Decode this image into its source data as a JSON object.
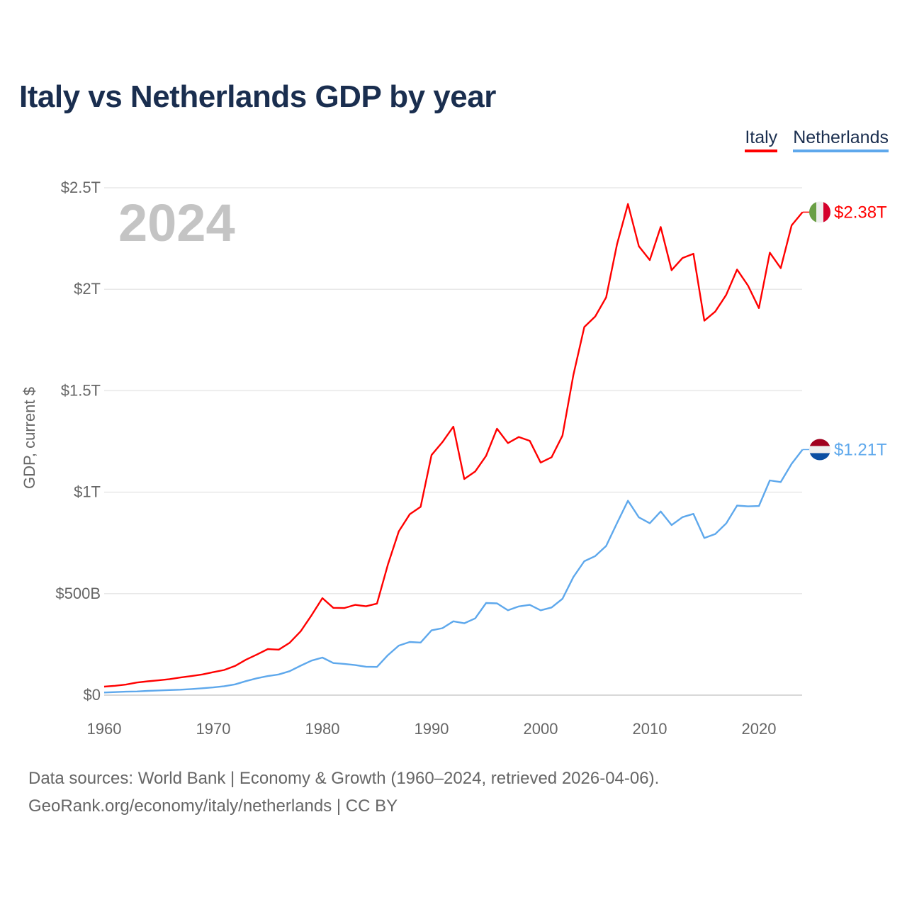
{
  "chart_data": {
    "type": "line",
    "title": "Italy vs Netherlands GDP by year",
    "ylabel": "GDP, current $",
    "xlabel": "",
    "year_label": "2024",
    "xlim": [
      1960,
      2024
    ],
    "ylim": [
      0,
      2.5
    ],
    "x_ticks": [
      1960,
      1970,
      1980,
      1990,
      2000,
      2010,
      2020
    ],
    "y_ticks": [
      {
        "v": 0,
        "label": "$0"
      },
      {
        "v": 0.5,
        "label": "$500B"
      },
      {
        "v": 1,
        "label": "$1T"
      },
      {
        "v": 1.5,
        "label": "$1.5T"
      },
      {
        "v": 2,
        "label": "$2T"
      },
      {
        "v": 2.5,
        "label": "$2.5T"
      }
    ],
    "grid": true,
    "legend_placement": "top-right",
    "x": [
      1960,
      1961,
      1962,
      1963,
      1964,
      1965,
      1966,
      1967,
      1968,
      1969,
      1970,
      1971,
      1972,
      1973,
      1974,
      1975,
      1976,
      1977,
      1978,
      1979,
      1980,
      1981,
      1982,
      1983,
      1984,
      1985,
      1986,
      1987,
      1988,
      1989,
      1990,
      1991,
      1992,
      1993,
      1994,
      1995,
      1996,
      1997,
      1998,
      1999,
      2000,
      2001,
      2002,
      2003,
      2004,
      2005,
      2006,
      2007,
      2008,
      2009,
      2010,
      2011,
      2012,
      2013,
      2014,
      2015,
      2016,
      2017,
      2018,
      2019,
      2020,
      2021,
      2022,
      2023,
      2024
    ],
    "series": [
      {
        "name": "Italy",
        "color": "#ff0000",
        "end_label": "$2.38T",
        "flag": "italy",
        "values": [
          0.042,
          0.046,
          0.052,
          0.062,
          0.068,
          0.073,
          0.079,
          0.087,
          0.094,
          0.102,
          0.113,
          0.124,
          0.144,
          0.175,
          0.2,
          0.227,
          0.224,
          0.258,
          0.314,
          0.393,
          0.478,
          0.43,
          0.429,
          0.445,
          0.438,
          0.451,
          0.643,
          0.807,
          0.891,
          0.928,
          1.183,
          1.247,
          1.323,
          1.065,
          1.102,
          1.179,
          1.313,
          1.242,
          1.272,
          1.253,
          1.146,
          1.172,
          1.279,
          1.578,
          1.814,
          1.866,
          1.96,
          2.222,
          2.42,
          2.212,
          2.144,
          2.307,
          2.094,
          2.154,
          2.175,
          1.845,
          1.89,
          1.972,
          2.097,
          2.018,
          1.907,
          2.18,
          2.104,
          2.315,
          2.38
        ]
      },
      {
        "name": "Netherlands",
        "color": "#5ea8ec",
        "end_label": "$1.21T",
        "flag": "netherlands",
        "values": [
          0.013,
          0.015,
          0.017,
          0.018,
          0.021,
          0.023,
          0.025,
          0.027,
          0.03,
          0.034,
          0.038,
          0.044,
          0.053,
          0.069,
          0.083,
          0.094,
          0.102,
          0.118,
          0.145,
          0.17,
          0.185,
          0.158,
          0.154,
          0.148,
          0.14,
          0.139,
          0.197,
          0.244,
          0.262,
          0.259,
          0.319,
          0.33,
          0.364,
          0.354,
          0.378,
          0.454,
          0.452,
          0.418,
          0.437,
          0.445,
          0.418,
          0.432,
          0.475,
          0.582,
          0.66,
          0.685,
          0.735,
          0.848,
          0.958,
          0.876,
          0.847,
          0.905,
          0.838,
          0.877,
          0.893,
          0.774,
          0.794,
          0.846,
          0.934,
          0.93,
          0.932,
          1.058,
          1.05,
          1.14,
          1.21
        ]
      }
    ]
  },
  "footer": {
    "line1": "Data sources: World Bank | Economy & Growth (1960–2024, retrieved 2026-04-06).",
    "line2": "GeoRank.org/economy/italy/netherlands | CC BY"
  }
}
